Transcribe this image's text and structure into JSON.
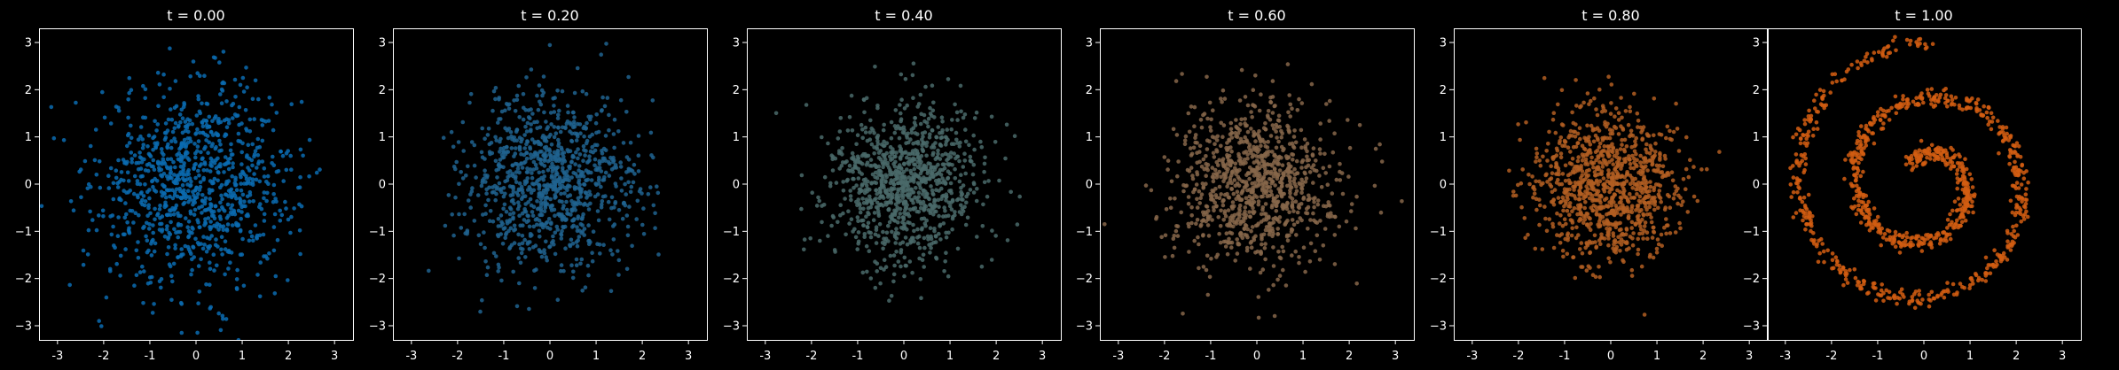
{
  "figure": {
    "background": "#000000",
    "axes_color": "#ffffff",
    "text_color": "#ffffff"
  },
  "chart_data": [
    {
      "type": "scatter",
      "title": "t = 0.00",
      "color": "#0a6bb0",
      "distribution": "gaussian",
      "spread": 1.05,
      "n_points": 1000,
      "xlim": [
        -3.4,
        3.4
      ],
      "ylim": [
        -3.3,
        3.3
      ],
      "xticks": [
        "-3",
        "-2",
        "-1",
        "0",
        "1",
        "2",
        "3"
      ],
      "yticks": [
        "3",
        "2",
        "1",
        "0",
        "−1",
        "−2",
        "−3"
      ]
    },
    {
      "type": "scatter",
      "title": "t = 0.20",
      "color": "#20638f",
      "distribution": "gaussian",
      "spread": 0.92,
      "n_points": 1000,
      "xlim": [
        -3.4,
        3.4
      ],
      "ylim": [
        -3.3,
        3.3
      ],
      "xticks": [
        "-3",
        "-2",
        "-1",
        "0",
        "1",
        "2",
        "3"
      ],
      "yticks": [
        "3",
        "2",
        "1",
        "0",
        "−1",
        "−2",
        "−3"
      ]
    },
    {
      "type": "scatter",
      "title": "t = 0.40",
      "color": "#4a6a6a",
      "distribution": "gaussian",
      "spread": 0.85,
      "n_points": 1000,
      "xlim": [
        -3.4,
        3.4
      ],
      "ylim": [
        -3.3,
        3.3
      ],
      "xticks": [
        "-3",
        "-2",
        "-1",
        "0",
        "1",
        "2",
        "3"
      ],
      "yticks": [
        "3",
        "2",
        "1",
        "0",
        "−1",
        "−2",
        "−3"
      ]
    },
    {
      "type": "scatter",
      "title": "t = 0.60",
      "color": "#86664a",
      "distribution": "gaussian",
      "spread": 0.88,
      "n_points": 1000,
      "xlim": [
        -3.4,
        3.4
      ],
      "ylim": [
        -3.3,
        3.3
      ],
      "xticks": [
        "-3",
        "-2",
        "-1",
        "0",
        "1",
        "2",
        "3"
      ],
      "yticks": [
        "3",
        "2",
        "1",
        "0",
        "−1",
        "−2",
        "−3"
      ]
    },
    {
      "type": "scatter",
      "title": "t = 0.80",
      "color": "#b25e22",
      "distribution": "spiral_blend",
      "spiral_weight": 0.45,
      "n_points": 1000,
      "xlim": [
        -3.4,
        3.4
      ],
      "ylim": [
        -3.3,
        3.3
      ],
      "xticks": [
        "-3",
        "-2",
        "-1",
        "0",
        "1",
        "2",
        "3"
      ],
      "yticks": [
        "3",
        "2",
        "1",
        "0",
        "−1",
        "−2",
        "−3"
      ]
    },
    {
      "type": "scatter",
      "title": "t = 1.00",
      "color": "#d25d12",
      "distribution": "spiral",
      "spiral_weight": 1.0,
      "n_points": 1000,
      "xlim": [
        -3.4,
        3.4
      ],
      "ylim": [
        -3.3,
        3.3
      ],
      "xticks": [
        "-3",
        "-2",
        "-1",
        "0",
        "1",
        "2",
        "3"
      ],
      "yticks": [
        "3",
        "2",
        "1",
        "0",
        "−1",
        "−2",
        "−3"
      ]
    }
  ]
}
